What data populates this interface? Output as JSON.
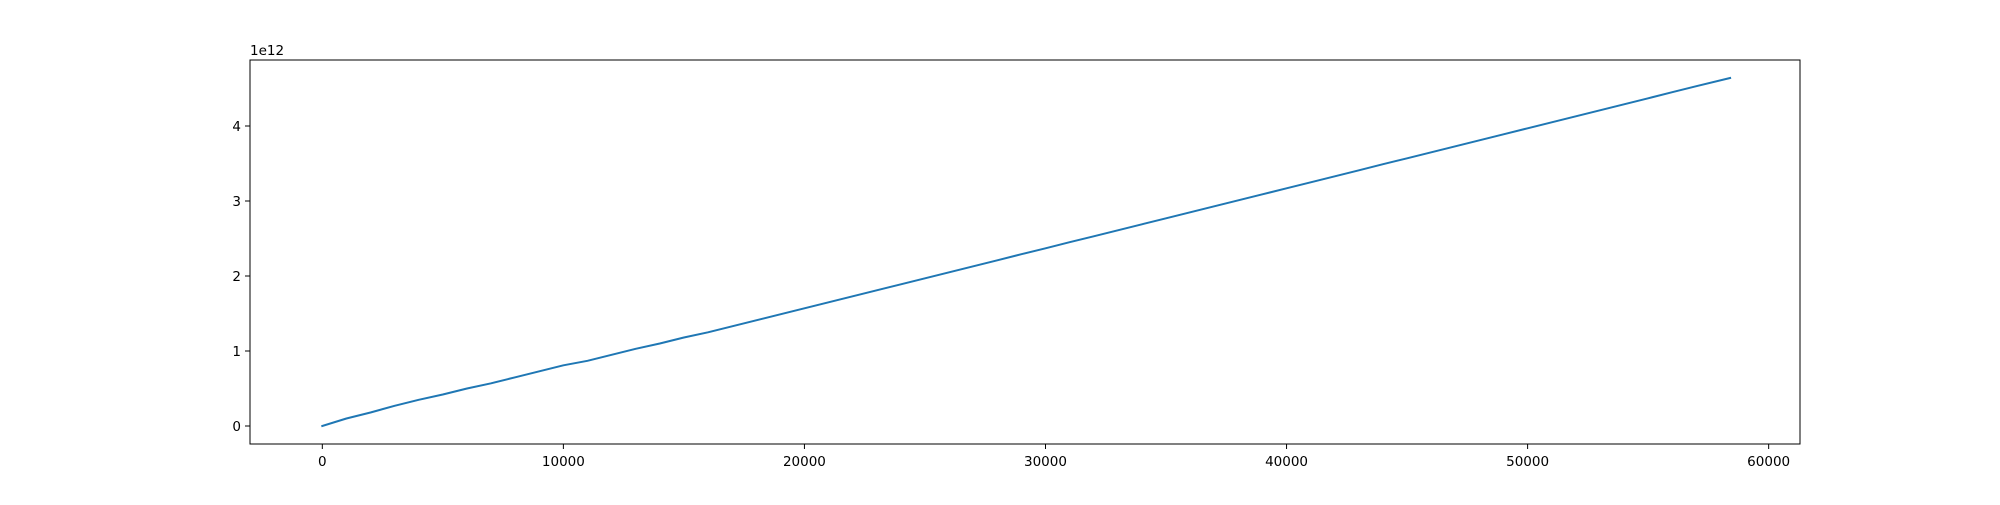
{
  "chart_data": {
    "type": "line",
    "title": "",
    "xlabel": "",
    "ylabel": "",
    "xlim": [
      -3000,
      61300
    ],
    "ylim": [
      -0.24,
      4.88
    ],
    "y_offset_label": "1e12",
    "xticks": [
      0,
      10000,
      20000,
      30000,
      40000,
      50000,
      60000
    ],
    "xtick_labels": [
      "0",
      "10000",
      "20000",
      "30000",
      "40000",
      "50000",
      "60000"
    ],
    "yticks": [
      0,
      1,
      2,
      3,
      4
    ],
    "ytick_labels": [
      "0",
      "1",
      "2",
      "3",
      "4"
    ],
    "grid": false,
    "legend": false,
    "series": [
      {
        "color": "#1f77b4",
        "x": [
          0,
          1000,
          2000,
          3000,
          4000,
          5000,
          6000,
          7000,
          8000,
          9000,
          10000,
          11000,
          12000,
          13000,
          14000,
          15000,
          16000,
          17000,
          18000,
          19000,
          20000,
          21000,
          22000,
          23000,
          24000,
          25000,
          26000,
          27000,
          28000,
          29000,
          30000,
          31000,
          32000,
          33000,
          34000,
          35000,
          36000,
          37000,
          38000,
          39000,
          40000,
          41000,
          42000,
          43000,
          44000,
          45000,
          46000,
          47000,
          48000,
          49000,
          50000,
          51000,
          52000,
          53000,
          54000,
          55000,
          56000,
          57000,
          58400
        ],
        "y": [
          0.0,
          0.1,
          0.18,
          0.27,
          0.35,
          0.42,
          0.5,
          0.57,
          0.65,
          0.73,
          0.81,
          0.87,
          0.95,
          1.03,
          1.1,
          1.18,
          1.25,
          1.33,
          1.41,
          1.49,
          1.57,
          1.65,
          1.73,
          1.81,
          1.89,
          1.97,
          2.05,
          2.13,
          2.21,
          2.29,
          2.37,
          2.45,
          2.53,
          2.61,
          2.69,
          2.77,
          2.85,
          2.93,
          3.01,
          3.09,
          3.17,
          3.25,
          3.33,
          3.41,
          3.49,
          3.57,
          3.65,
          3.73,
          3.81,
          3.89,
          3.97,
          4.05,
          4.13,
          4.21,
          4.29,
          4.37,
          4.45,
          4.53,
          4.64
        ]
      }
    ]
  }
}
